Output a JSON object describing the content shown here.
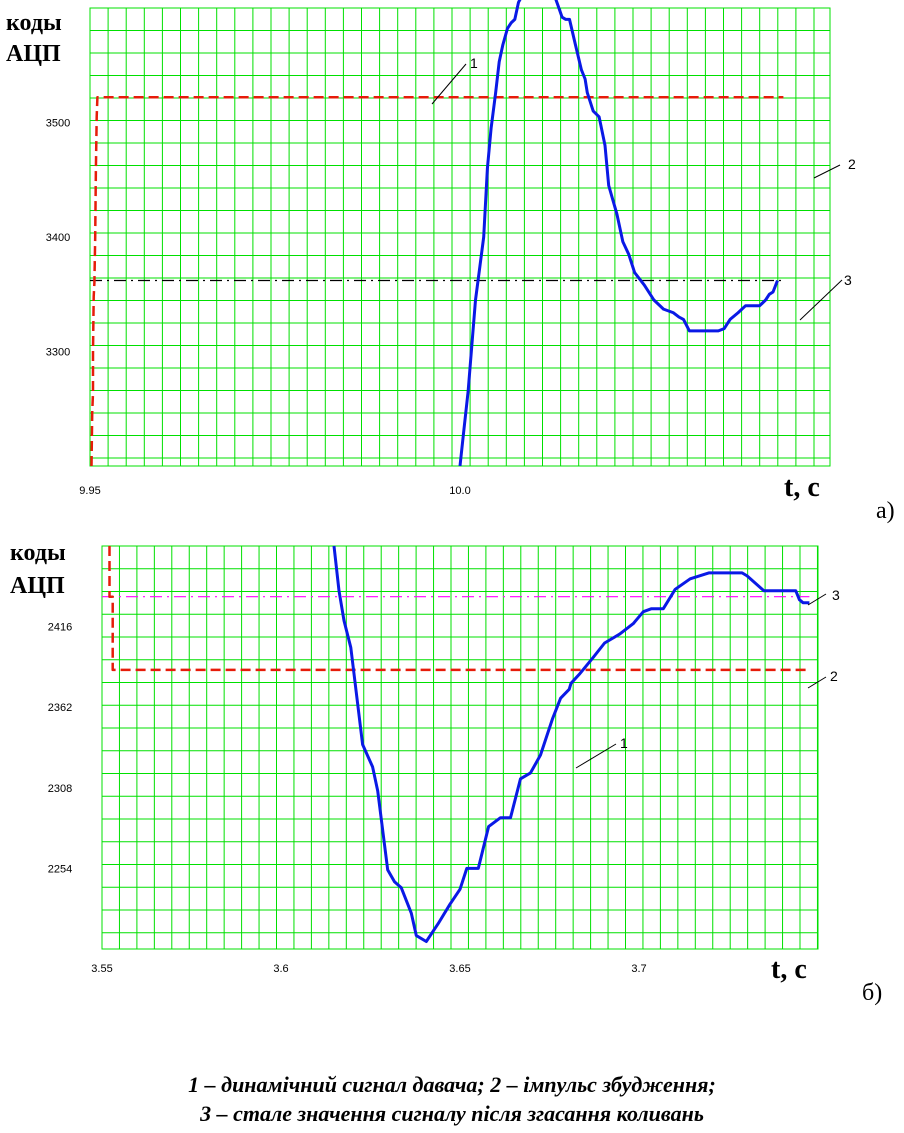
{
  "caption": {
    "line1": "1 – динамічний сигнал давача; 2 – імпульс збудження;",
    "line2": "3 – стале значення сигналу після згасання коливань"
  },
  "chart_data": [
    {
      "type": "line",
      "panel_label": "а)",
      "ylabel_line1": "коды",
      "ylabel_line2": "АЦП",
      "xlabel": "t, c",
      "xlim": [
        9.95,
        10.05
      ],
      "ylim": [
        3200,
        3600
      ],
      "x_ticks": [
        "9.95",
        "10.0"
      ],
      "x_tick_values": [
        9.95,
        10.0
      ],
      "y_ticks": [
        "3300",
        "3400",
        "3500"
      ],
      "y_tick_values": [
        3300,
        3400,
        3500
      ],
      "grid": true,
      "series": [
        {
          "callout": "1",
          "color": "#0a19e6",
          "style": "solid",
          "x": [
            10.0,
            10.0005,
            10.0011,
            10.0016,
            10.0021,
            10.0027,
            10.0032,
            10.0037,
            10.0042,
            10.0048,
            10.0053,
            10.0058,
            10.0064,
            10.0069,
            10.0074,
            10.0079,
            10.0085,
            10.009,
            10.0095,
            10.0103,
            10.0111,
            10.0119,
            10.0127,
            10.0132,
            10.0138,
            10.0143,
            10.0148,
            10.0156,
            10.0164,
            10.0169,
            10.0172,
            10.018,
            10.0188,
            10.0196,
            10.0201,
            10.0212,
            10.022,
            10.0228,
            10.0236,
            10.0249,
            10.0262,
            10.0275,
            10.0288,
            10.0296,
            10.0302,
            10.031,
            10.0328,
            10.0339,
            10.0349,
            10.0357,
            10.0365,
            10.0376,
            10.0386,
            10.0397,
            10.0405,
            10.0413,
            10.0418,
            10.0423,
            10.0429
          ],
          "y": [
            3200,
            3230,
            3265,
            3305,
            3345,
            3375,
            3400,
            3460,
            3495,
            3525,
            3553,
            3568,
            3582,
            3587,
            3590,
            3605,
            3612,
            3612,
            3612,
            3612,
            3612,
            3612,
            3612,
            3603,
            3592,
            3590,
            3590,
            3568,
            3546,
            3538,
            3526,
            3510,
            3505,
            3480,
            3445,
            3420,
            3396,
            3385,
            3369,
            3358,
            3345,
            3337,
            3334,
            3330,
            3328,
            3318,
            3318,
            3318,
            3318,
            3320,
            3328,
            3334,
            3340,
            3340,
            3340,
            3345,
            3350,
            3352,
            3362
          ]
        },
        {
          "callout": "2",
          "color": "#e61c0a",
          "style": "dashed",
          "x": [
            9.9502,
            9.9503,
            9.9504,
            9.9504,
            9.9505,
            9.9506,
            9.9507,
            9.9508,
            9.9509,
            9.951,
            10.0437
          ],
          "y": [
            3200,
            3246,
            3264,
            3300,
            3348,
            3360,
            3400,
            3460,
            3505,
            3522,
            3522
          ]
        },
        {
          "callout": "3",
          "color": "#000000",
          "style": "dashdot",
          "x": [
            9.95,
            10.0437
          ],
          "y": [
            3362,
            3362
          ]
        }
      ]
    },
    {
      "type": "line",
      "panel_label": "б)",
      "ylabel_line1": "коды",
      "ylabel_line2": "АЦП",
      "xlabel": "t, c",
      "xlim": [
        3.55,
        3.75
      ],
      "ylim": [
        2200,
        2470
      ],
      "x_ticks": [
        "3.55",
        "3.6",
        "3.65",
        "3.7"
      ],
      "x_tick_values": [
        3.55,
        3.6,
        3.65,
        3.7
      ],
      "y_ticks": [
        "2416",
        "2362",
        "2308",
        "2254"
      ],
      "y_tick_values": [
        2416,
        2362,
        2308,
        2254
      ],
      "grid": true,
      "series": [
        {
          "callout": "1",
          "color": "#0a19e6",
          "style": "solid",
          "x": [
            3.6148,
            3.6162,
            3.6176,
            3.6195,
            3.6228,
            3.6256,
            3.627,
            3.6298,
            3.6317,
            3.6336,
            3.6364,
            3.6378,
            3.6406,
            3.6439,
            3.6472,
            3.65,
            3.6519,
            3.6551,
            3.658,
            3.6613,
            3.6641,
            3.6669,
            3.6697,
            3.6725,
            3.6744,
            3.6758,
            3.6781,
            3.6805,
            3.681,
            3.6833,
            3.6871,
            3.6904,
            3.6946,
            3.6984,
            3.7012,
            3.7035,
            3.7068,
            3.7101,
            3.7143,
            3.7195,
            3.7255,
            3.7288,
            3.7302,
            3.7349,
            3.7372,
            3.7438,
            3.7448,
            3.7458,
            3.7476
          ],
          "y": [
            2470,
            2440,
            2420,
            2402,
            2337,
            2322,
            2306,
            2253,
            2245,
            2241,
            2224,
            2209,
            2205,
            2217,
            2230,
            2240,
            2254,
            2254,
            2282,
            2288,
            2288,
            2314,
            2318,
            2330,
            2344,
            2354,
            2368,
            2374,
            2378,
            2384,
            2395,
            2405,
            2411,
            2418,
            2426,
            2428,
            2428,
            2441,
            2448,
            2452,
            2452,
            2452,
            2450,
            2440,
            2440,
            2440,
            2434,
            2432,
            2432
          ]
        },
        {
          "callout": "2",
          "color": "#e61c0a",
          "style": "dashed",
          "x": [
            3.5521,
            3.5521,
            3.553,
            3.553,
            3.7476
          ],
          "y": [
            2470,
            2436,
            2436,
            2387,
            2387
          ]
        },
        {
          "callout": "3",
          "color": "#ff00ff",
          "style": "dashdot",
          "x": [
            3.55,
            3.7476
          ],
          "y": [
            2436,
            2436
          ]
        }
      ]
    }
  ]
}
